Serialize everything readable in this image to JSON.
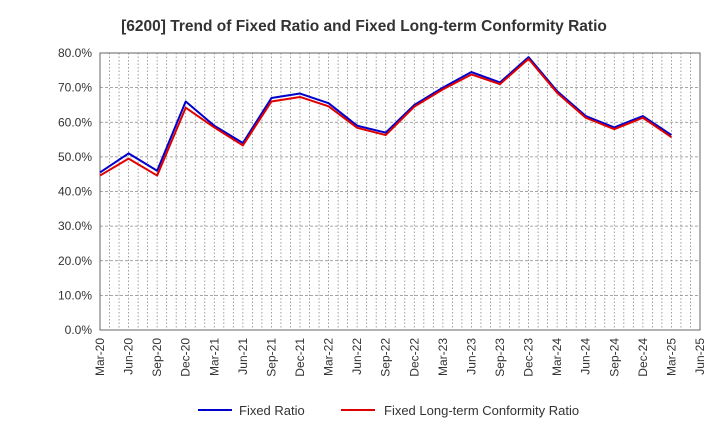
{
  "chart_data": {
    "type": "line",
    "title": "[6200]  Trend of Fixed Ratio and Fixed Long-term Conformity Ratio",
    "xlabel": "",
    "ylabel": "",
    "categories": [
      "Mar-20",
      "Jun-20",
      "Sep-20",
      "Dec-20",
      "Mar-21",
      "Jun-21",
      "Sep-21",
      "Dec-21",
      "Mar-22",
      "Jun-22",
      "Sep-22",
      "Dec-22",
      "Mar-23",
      "Jun-23",
      "Sep-23",
      "Dec-23",
      "Mar-24",
      "Jun-24",
      "Sep-24",
      "Dec-24",
      "Mar-25",
      "Jun-25"
    ],
    "y_ticks": [
      "0.0%",
      "10.0%",
      "20.0%",
      "30.0%",
      "40.0%",
      "50.0%",
      "60.0%",
      "70.0%",
      "80.0%"
    ],
    "ylim": [
      0,
      80
    ],
    "grid": true,
    "legend_position": "bottom",
    "series": [
      {
        "name": "Fixed Ratio",
        "color": "#0000cc",
        "values": [
          45.5,
          51.0,
          46.0,
          66.0,
          59.0,
          54.0,
          67.0,
          68.3,
          65.5,
          59.0,
          57.0,
          65.0,
          70.0,
          74.5,
          71.5,
          78.8,
          69.0,
          61.8,
          58.5,
          61.8,
          56.3,
          null
        ]
      },
      {
        "name": "Fixed Long-term Conformity Ratio",
        "color": "#e00000",
        "values": [
          44.6,
          49.5,
          44.6,
          64.2,
          58.5,
          53.3,
          66.0,
          67.3,
          64.6,
          58.4,
          56.3,
          64.5,
          69.5,
          73.8,
          71.0,
          78.3,
          68.5,
          61.3,
          58.0,
          61.3,
          55.7,
          null
        ]
      }
    ]
  }
}
